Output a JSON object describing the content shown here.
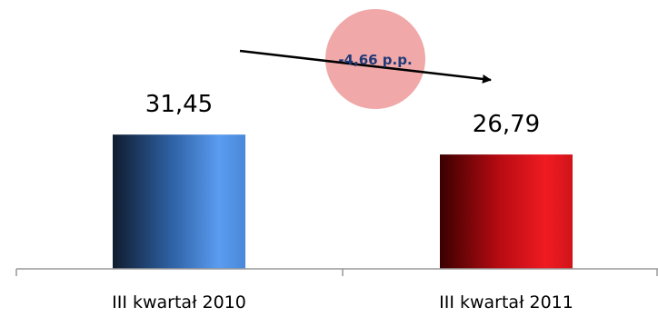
{
  "chart_data": {
    "type": "bar",
    "categories": [
      "III kwartał 2010",
      "III kwartał 2011"
    ],
    "values": [
      31.45,
      26.79
    ],
    "value_labels": [
      "31,45",
      "26,79"
    ],
    "ylim": [
      0,
      40
    ],
    "bar_colors": [
      "#4a8fe0",
      "#e8141c"
    ],
    "annotation": {
      "text": "-4,66 p.p.",
      "circle_color": "#f0a8a8",
      "arrow_color": "#000000"
    },
    "title": "",
    "xlabel": "",
    "ylabel": "",
    "grid": false,
    "legend": "none"
  }
}
